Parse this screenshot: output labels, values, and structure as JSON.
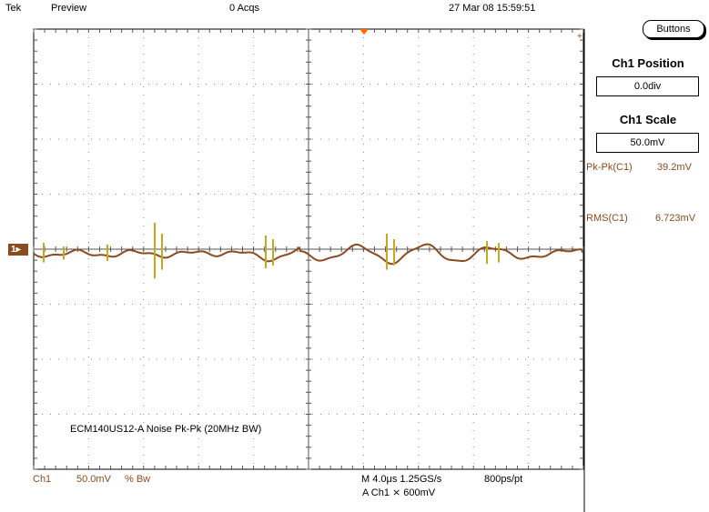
{
  "header": {
    "brand": "Tek",
    "mode": "Preview",
    "acqs": "0 Acqs",
    "datetime": "27 Mar 08 15:59:51"
  },
  "side_panel": {
    "buttons_label": "Buttons",
    "position_title": "Ch1 Position",
    "position_value": "0.0div",
    "scale_title": "Ch1 Scale",
    "scale_value": "50.0mV"
  },
  "measurements": [
    {
      "label": "Pk-Pk(C1)",
      "value": "39.2mV"
    },
    {
      "label": "RMS(C1)",
      "value": "6.723mV"
    }
  ],
  "annotation": "ECM140US12-A Noise Pk-Pk (20MHz BW)",
  "channel_marker": "1",
  "bottom": {
    "ch_label": "Ch1",
    "ch_scale": "50.0mV",
    "bw_symbols": "% Bw",
    "timebase": "M 4.0μs 1.25GS/s",
    "record": "800ps/pt",
    "trigger": "A  Ch1  ⨯ 600mV"
  },
  "colors": {
    "trace": "#8b4a1f",
    "trace_highlight": "#c9a81a",
    "graticule": "#888888",
    "trigger_marker": "#ff6a00"
  }
}
